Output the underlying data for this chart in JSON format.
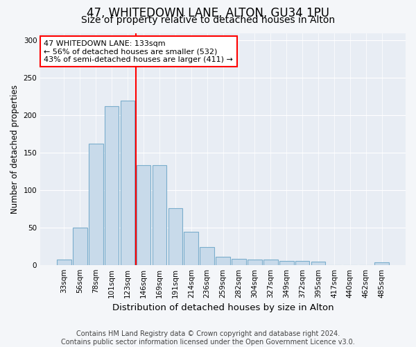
{
  "title": "47, WHITEDOWN LANE, ALTON, GU34 1PU",
  "subtitle": "Size of property relative to detached houses in Alton",
  "xlabel": "Distribution of detached houses by size in Alton",
  "ylabel": "Number of detached properties",
  "categories": [
    "33sqm",
    "56sqm",
    "78sqm",
    "101sqm",
    "123sqm",
    "146sqm",
    "169sqm",
    "191sqm",
    "214sqm",
    "236sqm",
    "259sqm",
    "282sqm",
    "304sqm",
    "327sqm",
    "349sqm",
    "372sqm",
    "395sqm",
    "417sqm",
    "440sqm",
    "462sqm",
    "485sqm"
  ],
  "values": [
    7,
    50,
    162,
    212,
    220,
    133,
    133,
    76,
    44,
    24,
    11,
    8,
    7,
    7,
    5,
    5,
    4,
    0,
    0,
    0,
    3
  ],
  "bar_color": "#c8daea",
  "bar_edge_color": "#7aadcc",
  "red_line_index": 4.5,
  "annotation_title": "47 WHITEDOWN LANE: 133sqm",
  "annotation_line1": "← 56% of detached houses are smaller (532)",
  "annotation_line2": "43% of semi-detached houses are larger (411) →",
  "fig_background": "#f4f6f9",
  "plot_background": "#e8edf4",
  "grid_color": "#ffffff",
  "ylim": [
    0,
    310
  ],
  "yticks": [
    0,
    50,
    100,
    150,
    200,
    250,
    300
  ],
  "footer": "Contains HM Land Registry data © Crown copyright and database right 2024.\nContains public sector information licensed under the Open Government Licence v3.0.",
  "title_fontsize": 12,
  "subtitle_fontsize": 10,
  "xlabel_fontsize": 9.5,
  "ylabel_fontsize": 8.5,
  "tick_fontsize": 7.5,
  "annotation_fontsize": 8,
  "footer_fontsize": 7
}
